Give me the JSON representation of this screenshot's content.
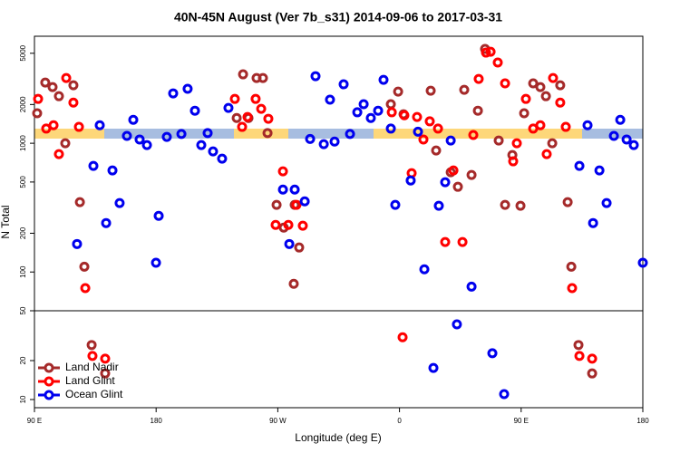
{
  "chart_data": [
    {
      "type": "scatter",
      "title": "40N-45N August (Ver 7b_s31)   2014-09-06 to 2017-03-31",
      "ylabel": "N Total",
      "ylog": true,
      "xlim": [
        90,
        540
      ],
      "ylim": [
        50,
        6780
      ],
      "yticks": [
        50,
        100,
        200,
        500,
        1000,
        2000,
        5000
      ],
      "series": [
        {
          "name": "Land Nadir",
          "color": "#a52a2a",
          "x": [
            92.0,
            98.0,
            103.4,
            108.1,
            112.8,
            118.8,
            123.6,
            126.9,
            244.3,
            239.6,
            248.3,
            254.3,
            259.0,
            262.4,
            269.1,
            282.5,
            274.4,
            285.8,
            281.8,
            353.6,
            359.0,
            363.0,
            383.1,
            387.1,
            397.9,
            403.2,
            407.9,
            413.3,
            418.0,
            423.3,
            433.4,
            438.1,
            443.5,
            449.5,
            452.2,
            458.9,
            464.2,
            468.3,
            473.0,
            478.9,
            484.4,
            487.1
          ],
          "values": [
            1710,
            2960,
            2730,
            2320,
            1000,
            2820,
            349,
            110,
            3430,
            1570,
            1570,
            3210,
            3210,
            1200,
            332,
            332,
            221,
            155,
            81,
            2010,
            2520,
            1680,
            2560,
            878,
            595,
            459,
            2600,
            567,
            1790,
            5400,
            1050,
            332,
            810,
            327,
            1710,
            2920,
            2730,
            2320,
            1000,
            2820,
            349,
            110
          ]
        },
        {
          "name": "Land Glint",
          "color": "#ff0000",
          "x": [
            92.7,
            98.7,
            104.1,
            108.1,
            113.5,
            118.8,
            122.9,
            127.6,
            238.2,
            243.6,
            247.6,
            253.6,
            257.7,
            263.0,
            273.8,
            268.4,
            277.8,
            283.8,
            288.5,
            354.3,
            363.6,
            369.0,
            373.0,
            377.7,
            382.4,
            388.5,
            393.8,
            399.9,
            406.6,
            414.6,
            418.6,
            424.0,
            427.4,
            432.7,
            438.1,
            446.8,
            444.1,
            453.5,
            458.9,
            464.2,
            468.9,
            473.6,
            478.9,
            483.0,
            487.7
          ],
          "values": [
            2210,
            1300,
            1380,
            823,
            3210,
            2070,
            1340,
            75,
            2210,
            1340,
            1600,
            2210,
            1850,
            1550,
            605,
            232,
            232,
            332,
            229,
            1740,
            1650,
            586,
            1600,
            1070,
            1480,
            1300,
            171,
            615,
            171,
            1160,
            3160,
            5060,
            5140,
            4240,
            2920,
            1000,
            724,
            2210,
            1300,
            1380,
            823,
            3210,
            2070,
            1340,
            75
          ]
        },
        {
          "name": "Ocean Glint",
          "color": "#0000ee",
          "x": [
            121.5,
            133.6,
            138.3,
            143.0,
            147.7,
            153.0,
            158.4,
            163.1,
            167.8,
            173.2,
            179.9,
            181.9,
            187.9,
            192.6,
            198.7,
            203.3,
            208.7,
            213.4,
            218.1,
            222.1,
            228.8,
            233.5,
            273.8,
            278.5,
            282.5,
            289.9,
            293.9,
            297.9,
            304.0,
            308.6,
            312.0,
            318.7,
            323.4,
            328.8,
            333.5,
            338.8,
            344.2,
            348.2,
            353.6,
            356.9,
            368.3,
            373.7,
            378.4,
            389.1,
            393.8,
            397.9,
            413.3,
            499.1,
            493.1,
            503.2,
            507.9,
            513.2,
            518.6,
            523.3,
            528.0,
            533.3,
            540.0
          ],
          "values": [
            165,
            667,
            1380,
            240,
            615,
            343,
            1140,
            1520,
            1070,
            968,
            118,
            273,
            1120,
            2440,
            1180,
            2650,
            1790,
            968,
            1200,
            864,
            759,
            1880,
            437,
            165,
            437,
            354,
            1080,
            3320,
            984,
            2180,
            1030,
            2870,
            1180,
            1740,
            2010,
            1570,
            1790,
            3110,
            1300,
            332,
            514,
            1230,
            105,
            327,
            498,
            1050,
            77,
            1380,
            667,
            240,
            615,
            343,
            1140,
            1520,
            1070,
            968,
            118
          ]
        }
      ]
    },
    {
      "type": "scatter",
      "xlabel": "Longitude (deg E)",
      "legend": "lower left",
      "xlim": [
        90,
        540
      ],
      "ylim": [
        7.9,
        32.8
      ],
      "yticks": [
        10,
        20
      ],
      "xticks": [
        {
          "value": 90,
          "label": "90 E"
        },
        {
          "value": 180,
          "label": "180"
        },
        {
          "value": 270,
          "label": "90 W"
        },
        {
          "value": 360,
          "label": "0"
        },
        {
          "value": 450,
          "label": "90 E"
        },
        {
          "value": 540,
          "label": "180"
        }
      ],
      "series": [
        {
          "color": "#a52a2a",
          "x": [
            132.3,
            142.3,
            492.4,
            502.5
          ],
          "values": [
            24.0,
            16.7,
            24.0,
            16.7
          ]
        },
        {
          "color": "#ff0000",
          "x": [
            132.9,
            142.3,
            362.3,
            493.1,
            502.5
          ],
          "values": [
            21.2,
            20.5,
            26.0,
            21.2,
            20.5
          ]
        },
        {
          "color": "#0000ee",
          "x": [
            385.1,
            402.5,
            428.7,
            437.4
          ],
          "values": [
            18.1,
            29.3,
            21.9,
            11.4
          ]
        }
      ]
    }
  ]
}
